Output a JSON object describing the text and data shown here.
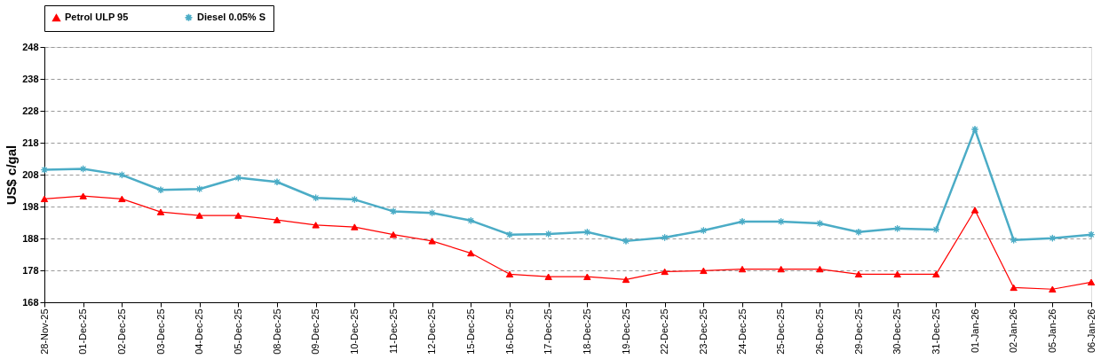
{
  "chart_data": {
    "type": "line",
    "ylabel": "US$ c/gal",
    "categories": [
      "28-Nov-25",
      "01-Dec-25",
      "02-Dec-25",
      "03-Dec-25",
      "04-Dec-25",
      "05-Dec-25",
      "08-Dec-25",
      "09-Dec-25",
      "10-Dec-25",
      "11-Dec-25",
      "12-Dec-25",
      "15-Dec-25",
      "16-Dec-25",
      "17-Dec-25",
      "18-Dec-25",
      "19-Dec-25",
      "22-Dec-25",
      "23-Dec-25",
      "24-Dec-25",
      "25-Dec-25",
      "26-Dec-25",
      "29-Dec-25",
      "30-Dec-25",
      "31-Dec-25",
      "01-Jan-26",
      "02-Jan-26",
      "05-Jan-26",
      "06-Jan-26"
    ],
    "series": [
      {
        "name": "Petrol ULP 95",
        "color": "#ff0000",
        "marker": "triangle",
        "values": [
          200.4,
          201.3,
          200.4,
          196.3,
          195.2,
          195.2,
          193.8,
          192.2,
          191.6,
          189.2,
          187.2,
          183.4,
          176.8,
          176.0,
          176.0,
          175.1,
          177.6,
          177.9,
          178.4,
          178.4,
          178.4,
          176.8,
          176.8,
          176.8,
          196.9,
          172.6,
          172.1,
          174.3
        ]
      },
      {
        "name": "Diesel 0.05% S",
        "color": "#4bacc6",
        "marker": "star",
        "values": [
          209.5,
          209.8,
          207.9,
          203.2,
          203.5,
          207.0,
          205.7,
          200.7,
          200.2,
          196.5,
          196.0,
          193.6,
          189.2,
          189.4,
          190.0,
          187.2,
          188.3,
          190.5,
          193.3,
          193.3,
          192.7,
          190.0,
          191.1,
          190.8,
          222.2,
          187.5,
          188.1,
          189.2
        ]
      }
    ],
    "ylim": [
      168,
      248
    ],
    "yticks": [
      168,
      178,
      188,
      198,
      208,
      218,
      228,
      238,
      248
    ],
    "grid": "y",
    "legend": "top",
    "line_style": "solid"
  }
}
